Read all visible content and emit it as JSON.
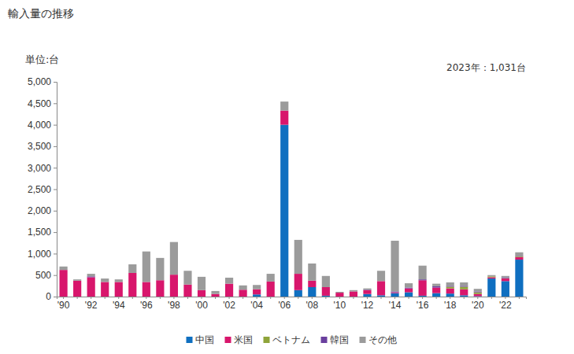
{
  "chart_data": {
    "type": "bar",
    "stacked": true,
    "grid": false,
    "legend": "bottom",
    "title": "輸入量の推移",
    "ylabel": "単位:台",
    "annotation": "2023年：1,031台",
    "categories": [
      "'90",
      null,
      "'92",
      null,
      "'94",
      null,
      "'96",
      null,
      "'98",
      null,
      "'00",
      null,
      "'02",
      null,
      "'04",
      null,
      "'06",
      null,
      "'08",
      null,
      "'10",
      null,
      "'12",
      null,
      "'14",
      null,
      "'16",
      null,
      "'18",
      null,
      "'20",
      null,
      "'22",
      null
    ],
    "ylim": [
      0,
      5000
    ],
    "yticks": [
      0,
      500,
      {
        "value": 1000,
        "label": "1,000"
      },
      {
        "value": 1500,
        "label": "1,500"
      },
      {
        "value": 2000,
        "label": "2,000"
      },
      {
        "value": 2500,
        "label": "2,500"
      },
      {
        "value": 3000,
        "label": "3,000"
      },
      {
        "value": 3500,
        "label": "3,500"
      },
      {
        "value": 4000,
        "label": "4,000"
      },
      {
        "value": 4500,
        "label": "4,500"
      },
      {
        "value": 5000,
        "label": "5,000"
      }
    ],
    "series": [
      {
        "name": "中国",
        "color": "#0f6fc0",
        "values": [
          0,
          0,
          0,
          0,
          0,
          0,
          0,
          0,
          0,
          0,
          0,
          0,
          0,
          0,
          50,
          0,
          4000,
          150,
          220,
          20,
          0,
          0,
          60,
          30,
          80,
          100,
          20,
          80,
          70,
          30,
          10,
          420,
          360,
          860
        ]
      },
      {
        "name": "米国",
        "color": "#d8166c",
        "values": [
          620,
          370,
          450,
          340,
          340,
          550,
          340,
          380,
          510,
          280,
          150,
          60,
          300,
          160,
          120,
          350,
          330,
          380,
          150,
          200,
          90,
          120,
          90,
          330,
          20,
          90,
          360,
          130,
          120,
          140,
          50,
          30,
          60,
          60
        ]
      },
      {
        "name": "ベトナム",
        "color": "#8fa43a",
        "values": [
          0,
          0,
          0,
          0,
          0,
          0,
          0,
          0,
          0,
          0,
          0,
          0,
          0,
          0,
          0,
          0,
          0,
          0,
          0,
          0,
          0,
          0,
          0,
          0,
          0,
          0,
          0,
          0,
          40,
          60,
          40,
          20,
          10,
          20
        ]
      },
      {
        "name": "韓国",
        "color": "#6a3f9e",
        "values": [
          0,
          0,
          20,
          0,
          0,
          0,
          0,
          0,
          0,
          0,
          0,
          0,
          0,
          0,
          0,
          0,
          0,
          0,
          0,
          0,
          0,
          0,
          10,
          0,
          20,
          20,
          20,
          30,
          20,
          20,
          20,
          0,
          20,
          10
        ]
      },
      {
        "name": "その他",
        "color": "#9b9b9b",
        "values": [
          80,
          30,
          60,
          80,
          60,
          200,
          710,
          520,
          760,
          320,
          310,
          70,
          140,
          100,
          100,
          180,
          210,
          790,
          400,
          260,
          20,
          30,
          30,
          240,
          1180,
          100,
          320,
          60,
          80,
          80,
          60,
          30,
          30,
          81
        ]
      }
    ]
  }
}
